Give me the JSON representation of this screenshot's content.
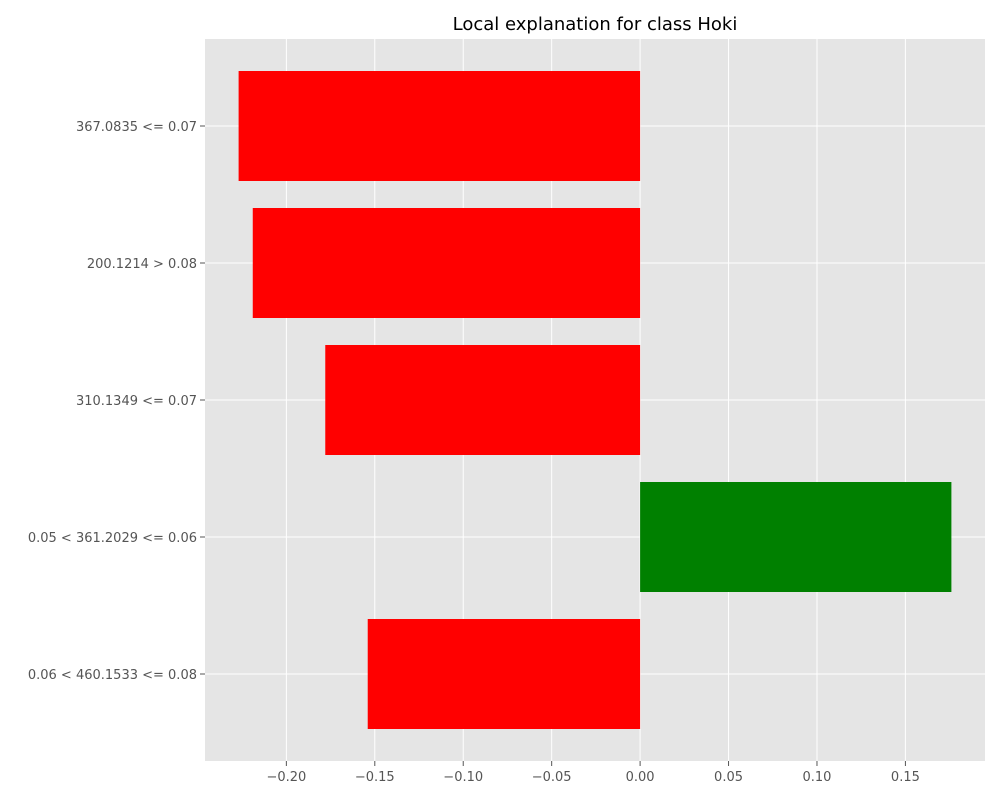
{
  "chart_data": {
    "type": "bar",
    "orientation": "horizontal",
    "title": "Local explanation for class Hoki",
    "xlabel": "",
    "ylabel": "",
    "categories": [
      "367.0835 <= 0.07",
      "200.1214 > 0.08",
      "310.1349 <= 0.07",
      "0.05 < 361.2029 <= 0.06",
      "0.06 < 460.1533 <= 0.08"
    ],
    "values": [
      -0.227,
      -0.219,
      -0.178,
      0.176,
      -0.154
    ],
    "colors": [
      "#ff0000",
      "#ff0000",
      "#ff0000",
      "#008000",
      "#ff0000"
    ],
    "xlim": [
      -0.246,
      0.195
    ],
    "xticks": [
      -0.2,
      -0.15,
      -0.1,
      -0.05,
      0.0,
      0.05,
      0.1,
      0.15
    ],
    "xtick_labels": [
      "−0.20",
      "−0.15",
      "−0.10",
      "−0.05",
      "0.00",
      "0.05",
      "0.10",
      "0.15"
    ],
    "grid": true,
    "style": "ggplot",
    "colors_meta": {
      "negative": "#ff0000",
      "positive": "#008000",
      "plot_background": "#e5e5e5",
      "grid": "#ffffff"
    }
  }
}
